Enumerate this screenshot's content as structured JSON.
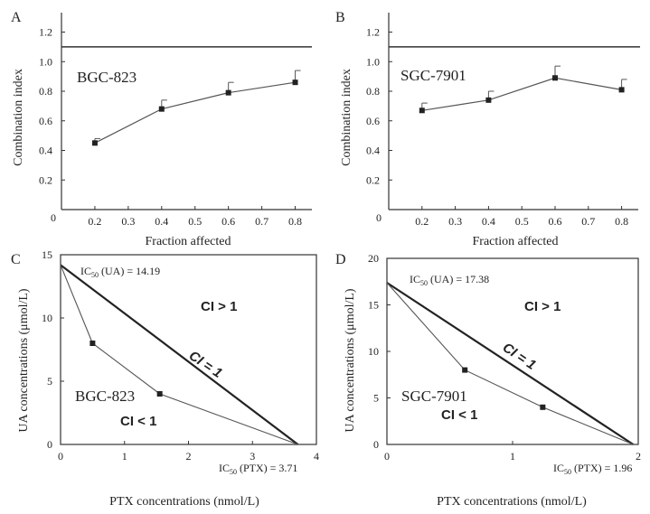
{
  "chart_data": [
    {
      "panel": "A",
      "type": "line",
      "title": "",
      "cell_label": "BGC-823",
      "xlabel": "Fraction affected",
      "ylabel": "Combination index",
      "xlim": [
        0.1,
        0.85
      ],
      "ylim": [
        0,
        1.2
      ],
      "x_ticks": [
        "0.2",
        "0.3",
        "0.4",
        "0.5",
        "0.6",
        "0.7",
        "0.8"
      ],
      "y_ticks": [
        "0.2",
        "0.4",
        "0.6",
        "0.8",
        "1.0",
        "1.2"
      ],
      "x_tick_values": [
        0.2,
        0.3,
        0.4,
        0.5,
        0.6,
        0.7,
        0.8
      ],
      "y_tick_values": [
        0.2,
        0.4,
        0.6,
        0.8,
        1.0,
        1.2
      ],
      "origin_label": "0",
      "reference_line": 1.1,
      "x": [
        0.2,
        0.4,
        0.6,
        0.8
      ],
      "y": [
        0.45,
        0.68,
        0.79,
        0.86
      ],
      "error": [
        0.03,
        0.06,
        0.07,
        0.08
      ]
    },
    {
      "panel": "B",
      "type": "line",
      "title": "",
      "cell_label": "SGC-7901",
      "xlabel": "Fraction affected",
      "ylabel": "Combination index",
      "xlim": [
        0.1,
        0.85
      ],
      "ylim": [
        0,
        1.2
      ],
      "x_ticks": [
        "0.2",
        "0.3",
        "0.4",
        "0.5",
        "0.6",
        "0.7",
        "0.8"
      ],
      "y_ticks": [
        "0.2",
        "0.4",
        "0.6",
        "0.8",
        "1.0",
        "1.2"
      ],
      "x_tick_values": [
        0.2,
        0.3,
        0.4,
        0.5,
        0.6,
        0.7,
        0.8
      ],
      "y_tick_values": [
        0.2,
        0.4,
        0.6,
        0.8,
        1.0,
        1.2
      ],
      "origin_label": "0",
      "reference_line": 1.1,
      "x": [
        0.2,
        0.4,
        0.6,
        0.8
      ],
      "y": [
        0.67,
        0.74,
        0.89,
        0.81
      ],
      "error": [
        0.05,
        0.06,
        0.08,
        0.07
      ]
    },
    {
      "panel": "C",
      "type": "scatter",
      "title": "",
      "cell_label": "BGC-823",
      "xlabel": "PTX concentrations (nmol/L)",
      "ylabel": "UA concentrations  (μmol/L)",
      "xlim": [
        0,
        4
      ],
      "ylim": [
        0,
        15
      ],
      "x_ticks": [
        "0",
        "1",
        "2",
        "3",
        "4"
      ],
      "y_ticks": [
        "0",
        "5",
        "10",
        "15"
      ],
      "x_tick_values": [
        0,
        1,
        2,
        3,
        4
      ],
      "y_tick_values": [
        0,
        5,
        10,
        15
      ],
      "isobologram": {
        "ic50_y": 14.19,
        "ic50_x": 3.71
      },
      "points": {
        "x": [
          0,
          0.5,
          1.55,
          3.71
        ],
        "y": [
          14.19,
          8,
          4,
          0
        ]
      },
      "ic50_y_label": {
        "prefix": "IC",
        "sub": "50",
        "text": " (UA) = 14.19"
      },
      "ic50_x_label": {
        "prefix": "IC",
        "sub": "50",
        "text": " (PTX) = 3.71"
      },
      "region_labels": {
        "above": "CI > 1",
        "on_line": "CI = 1",
        "below": "CI < 1"
      }
    },
    {
      "panel": "D",
      "type": "scatter",
      "title": "",
      "cell_label": "SGC-7901",
      "xlabel": "PTX concentrations (nmol/L)",
      "ylabel": "UA concentrations  (μmol/L)",
      "xlim": [
        0,
        2
      ],
      "ylim": [
        0,
        20
      ],
      "x_ticks": [
        "0",
        "1",
        "2"
      ],
      "y_ticks": [
        "0",
        "5",
        "10",
        "15",
        "20"
      ],
      "x_tick_values": [
        0,
        1,
        2
      ],
      "y_tick_values": [
        0,
        5,
        10,
        15,
        20
      ],
      "isobologram": {
        "ic50_y": 17.38,
        "ic50_x": 1.96
      },
      "points": {
        "x": [
          0,
          0.62,
          1.24,
          1.96
        ],
        "y": [
          17.38,
          8,
          4,
          0
        ]
      },
      "ic50_y_label": {
        "prefix": "IC",
        "sub": "50",
        "text": " (UA) = 17.38"
      },
      "ic50_x_label": {
        "prefix": "IC",
        "sub": "50",
        "text": " (PTX) = 1.96"
      },
      "region_labels": {
        "above": "CI > 1",
        "on_line": "CI = 1",
        "below": "CI < 1"
      }
    }
  ]
}
